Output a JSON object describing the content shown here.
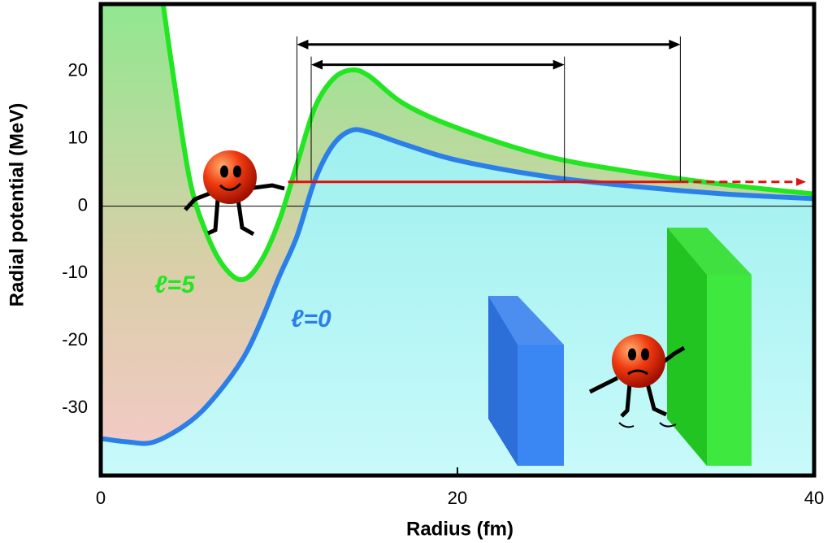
{
  "chart_data": {
    "type": "line",
    "x_label": "Radius (fm)",
    "y_label": "Radial potential (MeV)",
    "xlim": [
      0,
      40
    ],
    "xticks": [
      0,
      20,
      40
    ],
    "ylim": [
      -40,
      30
    ],
    "yticks": [
      -30,
      -20,
      -10,
      0,
      10,
      20
    ],
    "series": [
      {
        "name": "ℓ=5",
        "color": "#22e622",
        "x": [
          3.5,
          4,
          5,
          6,
          7,
          8,
          9,
          10,
          11,
          12,
          13,
          14,
          15,
          17,
          20,
          25,
          30,
          35,
          40
        ],
        "values": [
          30,
          20.6,
          3.8,
          -4.5,
          -9.3,
          -10.9,
          -8.1,
          -2.2,
          6.2,
          14.6,
          18.8,
          20.2,
          19.4,
          15.2,
          11.6,
          7.4,
          5,
          3.2,
          1.8
        ]
      },
      {
        "name": "ℓ=0",
        "color": "#2a7fe8",
        "x": [
          0,
          1.5,
          3,
          5,
          6.5,
          8,
          9,
          10,
          11,
          12,
          13,
          14,
          15,
          17,
          20,
          25,
          30,
          35,
          40
        ],
        "values": [
          -34.5,
          -35,
          -35,
          -32,
          -28,
          -22.5,
          -17,
          -10.5,
          -4.5,
          3.8,
          9,
          11.2,
          11,
          9.2,
          6.8,
          4.4,
          2.9,
          1.8,
          1.1
        ]
      }
    ],
    "energy_line": {
      "y": 3.6,
      "x": [
        10.5,
        32.5,
        40
      ],
      "color": "#e01010"
    },
    "barriers": [
      {
        "y": 24,
        "x": [
          11,
          32.5
        ]
      },
      {
        "y": 21,
        "x": [
          11.8,
          26
        ]
      }
    ]
  }
}
